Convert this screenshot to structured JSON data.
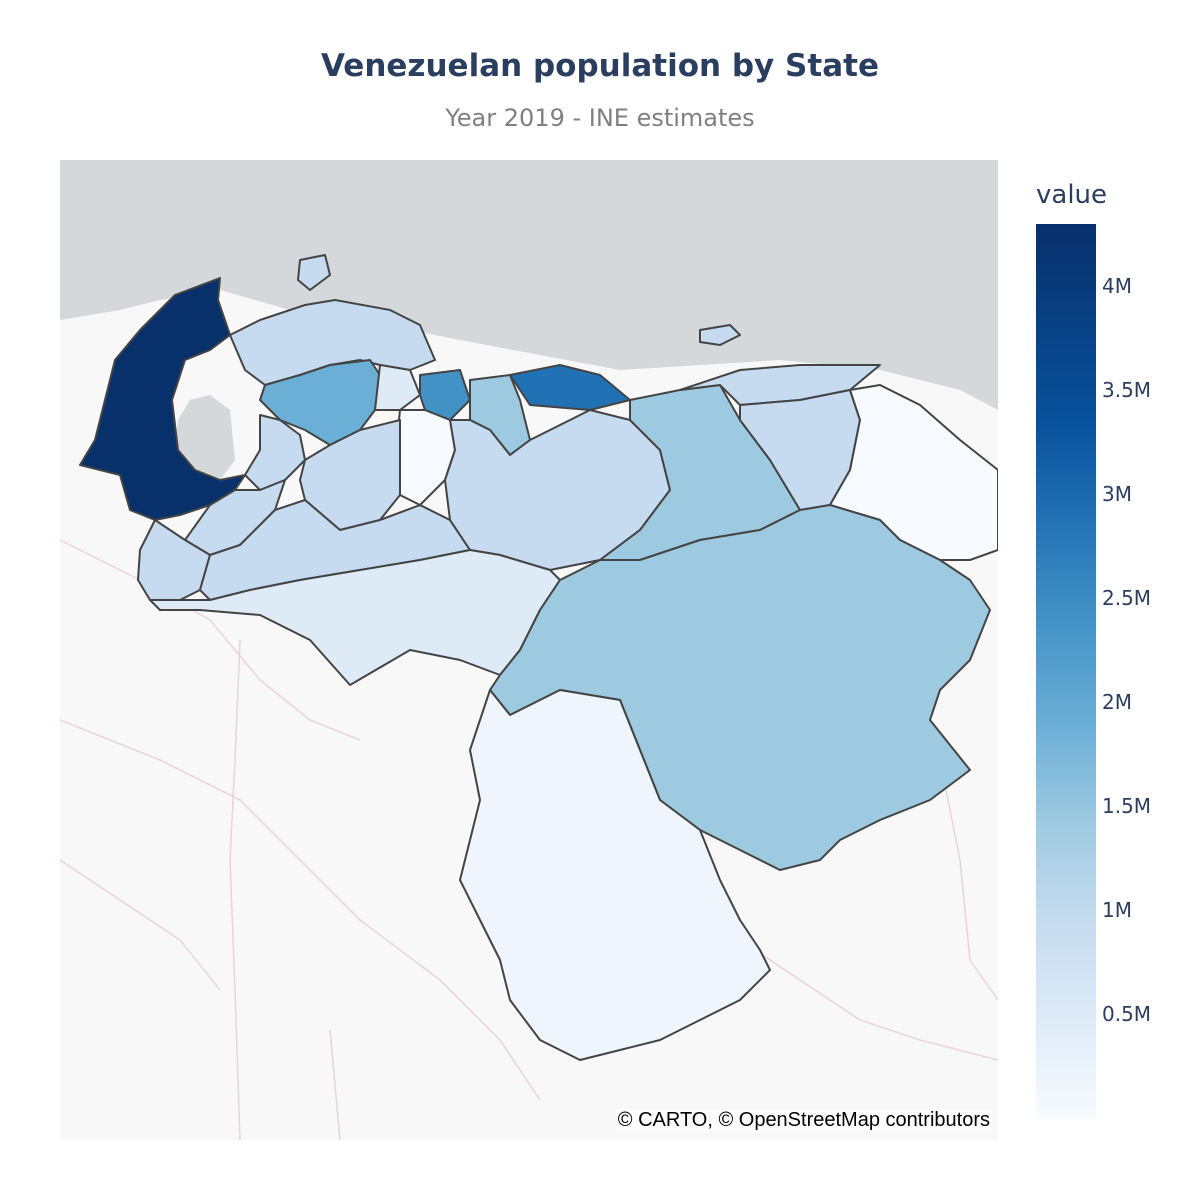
{
  "title": "Venezuelan population by State",
  "subtitle": "Year 2019 - INE estimates",
  "attribution": "© CARTO, © OpenStreetMap contributors",
  "colorbar": {
    "title": "value",
    "ticks": [
      "0.5M",
      "1M",
      "1.5M",
      "2M",
      "2.5M",
      "3M",
      "3.5M",
      "4M"
    ],
    "max_value": 4300000
  },
  "colors": {
    "sea": "#d4d8db",
    "land": "#f8f8f8",
    "border": "#444444",
    "scale": [
      "#f7fbff",
      "#deebf7",
      "#c6dbef",
      "#9ecae1",
      "#6baed6",
      "#4292c6",
      "#2171b5",
      "#08519c",
      "#08306b"
    ]
  }
}
